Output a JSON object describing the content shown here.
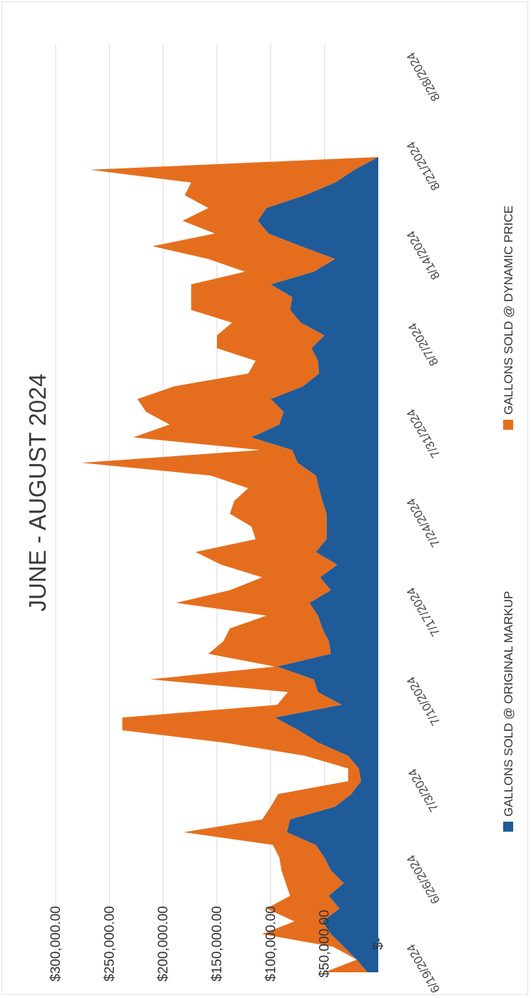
{
  "chart_data": {
    "type": "area",
    "title": "JUNE - AUGUST 2024",
    "xlabel": "",
    "ylabel": "",
    "stacked": true,
    "y_ticks": [
      "$-",
      "$50,000.00",
      "$100,000.00",
      "$150,000.00",
      "$200,000.00",
      "$250,000.00",
      "$300,000.00"
    ],
    "y_tick_values": [
      0,
      50000,
      100000,
      150000,
      200000,
      250000,
      300000
    ],
    "ylim": [
      0,
      300000
    ],
    "x_ticks": [
      "6/19/2024",
      "6/26/2024",
      "7/3/2024",
      "7/10/2024",
      "7/17/2024",
      "7/24/2024",
      "7/31/2024",
      "8/7/2024",
      "8/14/2024",
      "8/21/2024",
      "8/28/2024"
    ],
    "x": [
      "6/19/2024",
      "6/20/2024",
      "6/21/2024",
      "6/22/2024",
      "6/23/2024",
      "6/24/2024",
      "6/25/2024",
      "6/26/2024",
      "6/27/2024",
      "6/28/2024",
      "6/29/2024",
      "6/30/2024",
      "7/1/2024",
      "7/2/2024",
      "7/3/2024",
      "7/4/2024",
      "7/5/2024",
      "7/6/2024",
      "7/7/2024",
      "7/8/2024",
      "7/9/2024",
      "7/10/2024",
      "7/11/2024",
      "7/12/2024",
      "7/13/2024",
      "7/14/2024",
      "7/15/2024",
      "7/16/2024",
      "7/17/2024",
      "7/18/2024",
      "7/19/2024",
      "7/20/2024",
      "7/21/2024",
      "7/22/2024",
      "7/23/2024",
      "7/24/2024",
      "7/25/2024",
      "7/26/2024",
      "7/27/2024",
      "7/28/2024",
      "7/29/2024",
      "7/30/2024",
      "7/31/2024",
      "8/1/2024",
      "8/2/2024",
      "8/3/2024",
      "8/4/2024",
      "8/5/2024",
      "8/6/2024",
      "8/7/2024",
      "8/8/2024",
      "8/9/2024",
      "8/10/2024",
      "8/11/2024",
      "8/12/2024",
      "8/13/2024",
      "8/14/2024",
      "8/15/2024",
      "8/16/2024",
      "8/17/2024",
      "8/18/2024",
      "8/19/2024",
      "8/20/2024",
      "8/21/2024",
      "8/22/2024"
    ],
    "series": [
      {
        "name": "GALLONS SOLD @ ORIGINAL MARKUP",
        "color": "#1f5b99",
        "values": [
          10000,
          20000,
          32000,
          44000,
          52000,
          36000,
          46000,
          32000,
          44000,
          50000,
          58000,
          85000,
          82000,
          40000,
          25000,
          16000,
          18000,
          28000,
          55000,
          74000,
          96000,
          34000,
          56000,
          60000,
          94000,
          44000,
          46000,
          52000,
          56000,
          64000,
          44000,
          54000,
          38000,
          58000,
          48000,
          48000,
          48000,
          52000,
          55000,
          58000,
          75000,
          80000,
          118000,
          92000,
          88000,
          100000,
          70000,
          55000,
          56000,
          62000,
          50000,
          72000,
          82000,
          80000,
          100000,
          60000,
          40000,
          72000,
          102000,
          112000,
          104000,
          68000,
          40000,
          22000,
          0
        ]
      },
      {
        "name": "GALLONS SOLD @ DYNAMIC PRICE",
        "color": "#e56e1e",
        "values": [
          40000,
          0,
          10000,
          64000,
          26000,
          68000,
          36000,
          54000,
          46000,
          42000,
          40000,
          96000,
          26000,
          60000,
          68000,
          12000,
          10000,
          40000,
          86000,
          164000,
          142000,
          60000,
          28000,
          152000,
          2000,
          114000,
          98000,
          86000,
          48000,
          124000,
          94000,
          54000,
          108000,
          112000,
          66000,
          70000,
          90000,
          82000,
          66000,
          98000,
          201000,
          30000,
          110000,
          102000,
          128000,
          124000,
          120000,
          66000,
          58000,
          88000,
          100000,
          64000,
          92000,
          94000,
          74000,
          64000,
          118000,
          138000,
          50000,
          70000,
          54000,
          112000,
          134000,
          246000,
          0
        ]
      }
    ],
    "legend_position": "bottom",
    "grid": true
  }
}
